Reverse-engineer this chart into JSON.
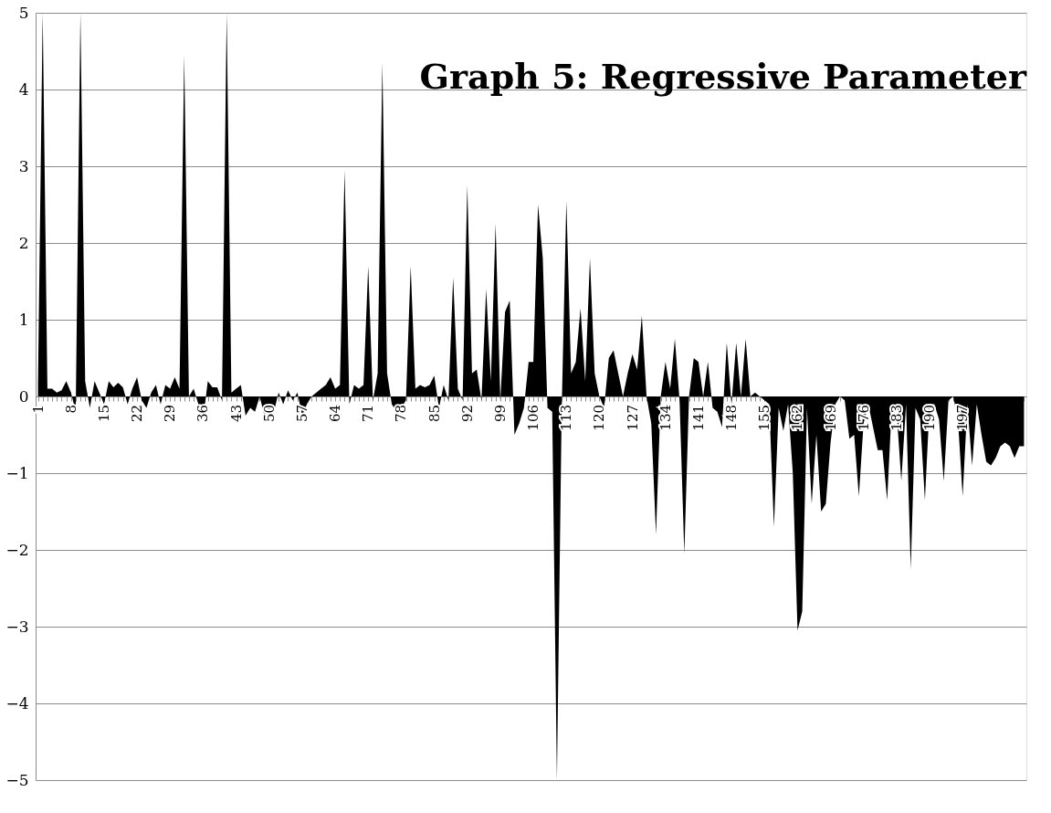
{
  "chart_data": {
    "type": "area",
    "title": "Graph 5: Regressive Parameter",
    "categories": [
      "1",
      null,
      null,
      null,
      null,
      null,
      null,
      "8",
      null,
      null,
      null,
      null,
      null,
      null,
      "15",
      null,
      null,
      null,
      null,
      null,
      null,
      "22",
      null,
      null,
      null,
      null,
      null,
      null,
      "29",
      null,
      null,
      null,
      null,
      null,
      null,
      "36",
      null,
      null,
      null,
      null,
      null,
      null,
      "43",
      null,
      null,
      null,
      null,
      null,
      null,
      "50",
      null,
      null,
      null,
      null,
      null,
      null,
      "57",
      null,
      null,
      null,
      null,
      null,
      null,
      "64",
      null,
      null,
      null,
      null,
      null,
      null,
      "71",
      null,
      null,
      null,
      null,
      null,
      null,
      "78",
      null,
      null,
      null,
      null,
      null,
      null,
      "85",
      null,
      null,
      null,
      null,
      null,
      null,
      "92",
      null,
      null,
      null,
      null,
      null,
      null,
      "99",
      null,
      null,
      null,
      null,
      null,
      null,
      "106",
      null,
      null,
      null,
      null,
      null,
      null,
      "113",
      null,
      null,
      null,
      null,
      null,
      null,
      "120",
      null,
      null,
      null,
      null,
      null,
      null,
      "127",
      null,
      null,
      null,
      null,
      null,
      null,
      "134",
      null,
      null,
      null,
      null,
      null,
      null,
      "141",
      null,
      null,
      null,
      null,
      null,
      null,
      "148",
      null,
      null,
      null,
      null,
      null,
      null,
      "155",
      null,
      null,
      null,
      null,
      null,
      null,
      "162",
      null,
      null,
      null,
      null,
      null,
      null,
      "169",
      null,
      null,
      null,
      null,
      null,
      null,
      "176",
      null,
      null,
      null,
      null,
      null,
      null,
      "183",
      null,
      null,
      null,
      null,
      null,
      null,
      "190",
      null,
      null,
      null,
      null,
      null,
      null,
      "197",
      null,
      null,
      null,
      null,
      null,
      null,
      null,
      null,
      null,
      null,
      null,
      null,
      null
    ],
    "series": [
      {
        "color": "#000000",
        "values": [
          0.15,
          5,
          0.1,
          0.1,
          0.05,
          0.08,
          0.2,
          0.05,
          -0.2,
          5,
          0.2,
          -0.15,
          0.2,
          0.05,
          -0.1,
          0.2,
          0.12,
          0.18,
          0.12,
          -0.1,
          0.1,
          0.25,
          -0.05,
          -0.15,
          0.05,
          0.15,
          -0.1,
          0.15,
          0.1,
          0.25,
          0.1,
          4.45,
          0,
          0.1,
          -0.1,
          -0.3,
          0.2,
          0.12,
          0.12,
          -0.05,
          5,
          0.05,
          0.1,
          0.15,
          -0.25,
          -0.15,
          -0.2,
          0,
          -0.25,
          -0.3,
          -0.2,
          0.05,
          -0.1,
          0.08,
          -0.05,
          0.05,
          -0.25,
          -0.1,
          0,
          0.05,
          0.1,
          0.15,
          0.25,
          0.1,
          0.15,
          2.95,
          -0.1,
          0.15,
          0.1,
          0.15,
          1.7,
          -0.05,
          0.3,
          4.35,
          0.3,
          -0.1,
          -0.2,
          -0.15,
          -0.05,
          1.7,
          0.1,
          0.15,
          0.12,
          0.15,
          0.27,
          -0.15,
          0.15,
          -0.05,
          1.55,
          0.1,
          -0.05,
          2.75,
          0.3,
          0.35,
          -0.05,
          1.4,
          0.2,
          2.25,
          -0.05,
          1.1,
          1.25,
          -0.5,
          -0.35,
          -0.15,
          0.45,
          0.45,
          2.5,
          1.8,
          -0.15,
          -0.2,
          -5,
          -0.2,
          2.55,
          0.3,
          0.45,
          1.15,
          0.2,
          1.8,
          0.3,
          0,
          -0.15,
          0.5,
          0.6,
          0.3,
          0,
          0.3,
          0.55,
          0.35,
          1.05,
          0,
          -0.35,
          -1.8,
          0,
          0.45,
          0.1,
          0.75,
          -0.05,
          -2.05,
          0,
          0.5,
          0.45,
          0,
          0.45,
          -0.15,
          -0.2,
          -0.4,
          0.7,
          -0.1,
          0.7,
          0,
          0.75,
          0,
          0.05,
          0,
          -0.05,
          -0.1,
          -1.7,
          -0.15,
          -0.45,
          -0.1,
          -1,
          -3.05,
          -2.8,
          -0.15,
          -1.4,
          -0.5,
          -1.5,
          -1.4,
          -0.6,
          -0.1,
          0,
          -0.05,
          -0.55,
          -0.5,
          -1.3,
          -0.35,
          -0.1,
          -0.4,
          -0.7,
          -0.7,
          -1.35,
          -0.1,
          -0.2,
          -1.1,
          -0.1,
          -2.25,
          -0.15,
          -0.3,
          -1.35,
          -0.1,
          -0.1,
          -0.3,
          -1.1,
          -0.05,
          0,
          -0.3,
          -1.3,
          -0.1,
          -0.9,
          -0.1,
          -0.5,
          -0.85,
          -0.9,
          -0.8,
          -0.65,
          -0.6,
          -0.65,
          -0.8,
          -0.65,
          -0.65
        ]
      }
    ],
    "ylim": [
      -5,
      5
    ],
    "yticks": [
      -5,
      -4,
      -3,
      -2,
      -1,
      0,
      1,
      2,
      3,
      4,
      5
    ],
    "grid": "y",
    "legend": false
  }
}
